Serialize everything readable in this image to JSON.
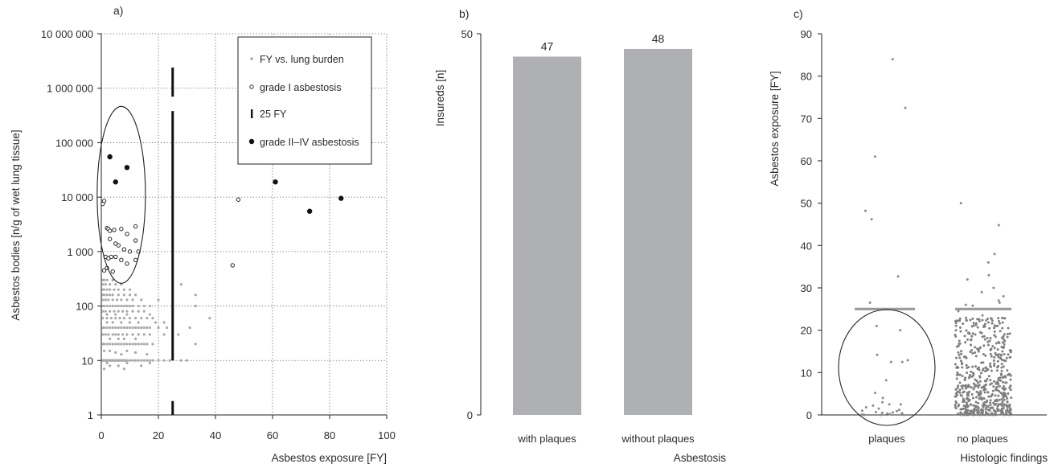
{
  "chart_data": [
    {
      "panel_label": "a)",
      "type": "scatter",
      "xlabel": "Asbestos exposure [FY]",
      "ylabel": "Asbestos bodies [n/g of wet lung tissue]",
      "xlim": [
        0,
        100
      ],
      "ylim": [
        1,
        10000000
      ],
      "y_scale": "log",
      "grid": true,
      "x_ticks": [
        0,
        20,
        40,
        60,
        80,
        100
      ],
      "x_tick_labels": [
        "0",
        "20",
        "40",
        "60",
        "80",
        "100"
      ],
      "y_ticks": [
        1,
        10,
        100,
        1000,
        10000,
        100000,
        1000000,
        10000000
      ],
      "y_tick_labels": [
        "1",
        "10",
        "100",
        "1 000",
        "10 000",
        "100 000",
        "1 000 000",
        "10 000 000"
      ],
      "legend_position": "top-right",
      "legend": [
        {
          "label": "FY vs. lung burden",
          "marker": "small-gray-dot"
        },
        {
          "label": "grade I asbestosis",
          "marker": "open-circle"
        },
        {
          "label": "25 FY",
          "marker": "vertical-bar"
        },
        {
          "label": "grade II–IV asbestosis",
          "marker": "filled-circle"
        }
      ],
      "series": [
        {
          "name": "FY vs. lung burden",
          "color": "#a9a9a9",
          "points": [
            [
              0.5,
              10
            ],
            [
              1,
              10
            ],
            [
              1.5,
              10
            ],
            [
              2,
              10
            ],
            [
              2.5,
              10
            ],
            [
              3,
              10
            ],
            [
              3.5,
              10
            ],
            [
              4,
              10
            ],
            [
              4.5,
              10
            ],
            [
              5,
              10
            ],
            [
              5.5,
              10
            ],
            [
              6,
              10
            ],
            [
              6.5,
              10
            ],
            [
              7,
              10
            ],
            [
              7.5,
              10
            ],
            [
              8,
              10
            ],
            [
              8.5,
              10
            ],
            [
              9,
              10
            ],
            [
              10,
              10
            ],
            [
              11,
              10
            ],
            [
              12,
              10
            ],
            [
              13,
              10
            ],
            [
              14,
              10
            ],
            [
              15,
              10
            ],
            [
              16,
              10
            ],
            [
              17,
              10
            ],
            [
              18,
              10
            ],
            [
              20,
              10
            ],
            [
              22,
              10
            ],
            [
              24,
              10
            ],
            [
              28,
              10
            ],
            [
              30,
              10
            ],
            [
              0.5,
              20
            ],
            [
              1,
              20
            ],
            [
              2,
              20
            ],
            [
              3,
              20
            ],
            [
              4,
              20
            ],
            [
              5,
              20
            ],
            [
              6,
              20
            ],
            [
              7,
              20
            ],
            [
              8,
              20
            ],
            [
              9,
              20
            ],
            [
              10,
              20
            ],
            [
              11,
              20
            ],
            [
              12,
              20
            ],
            [
              13,
              20
            ],
            [
              14,
              20
            ],
            [
              15,
              20
            ],
            [
              16,
              20
            ],
            [
              18,
              20
            ],
            [
              33,
              20
            ],
            [
              0.5,
              30
            ],
            [
              1.5,
              30
            ],
            [
              2.5,
              30
            ],
            [
              4,
              30
            ],
            [
              5,
              30
            ],
            [
              6,
              30
            ],
            [
              7.5,
              30
            ],
            [
              9,
              30
            ],
            [
              11,
              30
            ],
            [
              13,
              30
            ],
            [
              15,
              30
            ],
            [
              17,
              30
            ],
            [
              22,
              30
            ],
            [
              27,
              30
            ],
            [
              0.5,
              40
            ],
            [
              1,
              40
            ],
            [
              2,
              40
            ],
            [
              3,
              40
            ],
            [
              4,
              40
            ],
            [
              5,
              40
            ],
            [
              6,
              40
            ],
            [
              7,
              40
            ],
            [
              8,
              40
            ],
            [
              9,
              40
            ],
            [
              10,
              40
            ],
            [
              11,
              40
            ],
            [
              12,
              40
            ],
            [
              13,
              40
            ],
            [
              14,
              40
            ],
            [
              15,
              40
            ],
            [
              16,
              40
            ],
            [
              17,
              40
            ],
            [
              20,
              40
            ],
            [
              23,
              40
            ],
            [
              31,
              40
            ],
            [
              0.5,
              60
            ],
            [
              2,
              60
            ],
            [
              3.5,
              60
            ],
            [
              5,
              60
            ],
            [
              6.5,
              60
            ],
            [
              8,
              60
            ],
            [
              10,
              60
            ],
            [
              12,
              60
            ],
            [
              14,
              60
            ],
            [
              16,
              60
            ],
            [
              18,
              60
            ],
            [
              38,
              60
            ],
            [
              0.5,
              80
            ],
            [
              1.5,
              80
            ],
            [
              3,
              80
            ],
            [
              4.5,
              80
            ],
            [
              6,
              80
            ],
            [
              7.5,
              80
            ],
            [
              9,
              80
            ],
            [
              11,
              80
            ],
            [
              13,
              80
            ],
            [
              15,
              80
            ],
            [
              0.5,
              100
            ],
            [
              1,
              100
            ],
            [
              2,
              100
            ],
            [
              3,
              100
            ],
            [
              4,
              100
            ],
            [
              5,
              100
            ],
            [
              6,
              100
            ],
            [
              7,
              100
            ],
            [
              8,
              100
            ],
            [
              9,
              100
            ],
            [
              10,
              100
            ],
            [
              11,
              100
            ],
            [
              13,
              100
            ],
            [
              15,
              100
            ],
            [
              17,
              100
            ],
            [
              33,
              100
            ],
            [
              0.5,
              130
            ],
            [
              1.5,
              130
            ],
            [
              2.5,
              130
            ],
            [
              4,
              130
            ],
            [
              5.5,
              130
            ],
            [
              7,
              130
            ],
            [
              9,
              130
            ],
            [
              11,
              130
            ],
            [
              14,
              130
            ],
            [
              20,
              130
            ],
            [
              0.5,
              160
            ],
            [
              1,
              160
            ],
            [
              2,
              160
            ],
            [
              3,
              160
            ],
            [
              4,
              160
            ],
            [
              6,
              160
            ],
            [
              8,
              160
            ],
            [
              10,
              160
            ],
            [
              12,
              160
            ],
            [
              33,
              160
            ],
            [
              0.5,
              200
            ],
            [
              1,
              200
            ],
            [
              2,
              200
            ],
            [
              3,
              200
            ],
            [
              4.5,
              200
            ],
            [
              6,
              200
            ],
            [
              8,
              200
            ],
            [
              10,
              200
            ],
            [
              0.5,
              250
            ],
            [
              1.5,
              250
            ],
            [
              3,
              250
            ],
            [
              5,
              250
            ],
            [
              7,
              250
            ],
            [
              28,
              250
            ],
            [
              0.5,
              300
            ],
            [
              1,
              300
            ],
            [
              2,
              300
            ],
            [
              4,
              300
            ],
            [
              1,
              15
            ],
            [
              3,
              15
            ],
            [
              5,
              14
            ],
            [
              7,
              13
            ],
            [
              9,
              15
            ],
            [
              12,
              14
            ],
            [
              16,
              13
            ],
            [
              1,
              7
            ],
            [
              3,
              8
            ],
            [
              6,
              8
            ],
            [
              9,
              9
            ],
            [
              14,
              8
            ],
            [
              17,
              9
            ],
            [
              2,
              9
            ],
            [
              8,
              7
            ],
            [
              2,
              50
            ],
            [
              4,
              50
            ],
            [
              7,
              50
            ],
            [
              10,
              50
            ],
            [
              13,
              50
            ],
            [
              19,
              50
            ],
            [
              22,
              50
            ],
            [
              3,
              25
            ],
            [
              6,
              25
            ],
            [
              8,
              25
            ],
            [
              12,
              25
            ],
            [
              2,
              70
            ],
            [
              5,
              70
            ],
            [
              9,
              70
            ],
            [
              17,
              70
            ]
          ]
        },
        {
          "name": "grade I asbestosis",
          "color": "#2b2b2b",
          "points": [
            [
              0.5,
              7500
            ],
            [
              1,
              8500
            ],
            [
              2,
              2700
            ],
            [
              2.5,
              2600
            ],
            [
              3,
              2400
            ],
            [
              4.5,
              2500
            ],
            [
              7,
              2600
            ],
            [
              9,
              2100
            ],
            [
              12,
              2900
            ],
            [
              3,
              1700
            ],
            [
              5,
              1400
            ],
            [
              6,
              1300
            ],
            [
              12,
              1600
            ],
            [
              8,
              1100
            ],
            [
              10,
              1000
            ],
            [
              13,
              1000
            ],
            [
              1.5,
              800
            ],
            [
              2.5,
              750
            ],
            [
              3.5,
              800
            ],
            [
              5,
              800
            ],
            [
              7,
              700
            ],
            [
              9,
              600
            ],
            [
              12,
              700
            ],
            [
              1,
              450
            ],
            [
              2,
              500
            ],
            [
              4,
              430
            ],
            [
              46,
              560
            ],
            [
              48,
              9000
            ]
          ]
        },
        {
          "name": "grade II–IV asbestosis",
          "color": "#111111",
          "points": [
            [
              3,
              55000
            ],
            [
              5,
              19000
            ],
            [
              9,
              35000
            ],
            [
              61,
              19000
            ],
            [
              73,
              5500
            ],
            [
              84,
              9500
            ]
          ]
        },
        {
          "name": "25 FY",
          "color": "#111111",
          "x": 25,
          "segments": [
            [
              1,
              1.8
            ],
            [
              10,
              380000
            ],
            [
              700000,
              2400000
            ]
          ]
        }
      ],
      "annotations": [
        {
          "type": "ellipse",
          "center": [
            7,
            11000
          ],
          "note": "encircles asbestosis cases below 25 FY"
        }
      ]
    },
    {
      "panel_label": "b)",
      "type": "bar",
      "categories": [
        "with plaques",
        "without plaques"
      ],
      "values": [
        47,
        48
      ],
      "data_labels": [
        "47",
        "48"
      ],
      "ylabel": "Insureds [n]",
      "xlabel": "Asbestosis",
      "ylim": [
        0,
        50
      ],
      "y_ticks": [
        0,
        50
      ],
      "y_tick_labels": [
        "0",
        "50"
      ],
      "bar_color": "#aeb0b3"
    },
    {
      "panel_label": "c)",
      "type": "scatter",
      "categories": [
        "plaques",
        "no plaques"
      ],
      "ylabel": "Asbestos exposure [FY]",
      "xlabel": "Histologic findings",
      "ylim": [
        0,
        90
      ],
      "y_ticks": [
        0,
        10,
        20,
        30,
        40,
        50,
        60,
        70,
        80,
        90
      ],
      "y_tick_labels": [
        "0",
        "10",
        "20",
        "30",
        "40",
        "50",
        "60",
        "70",
        "80",
        "90"
      ],
      "reference_line": {
        "value": 25,
        "color": "#9a9a9a"
      },
      "series": [
        {
          "name": "plaques",
          "color": "#8a8a8a",
          "values": [
            84,
            72.5,
            61,
            48.2,
            46.2,
            32.7,
            26.5,
            21,
            20,
            14.2,
            12.5,
            12.5,
            12.9,
            8.2,
            5.2,
            4,
            3,
            2.5,
            2.2,
            2.5,
            1.8,
            1.2,
            1,
            0.7,
            0.5,
            0.3,
            0.2,
            0.6,
            0.9,
            1.5,
            0.4,
            0.1,
            0,
            0,
            0,
            0
          ]
        },
        {
          "name": "no plaques",
          "color": "#8a8a8a",
          "summary": "dense cloud of ~500 points between 0 and about 23 FY, densest near 0",
          "sparse_values": [
            50,
            44.8,
            38,
            36,
            33,
            32,
            30,
            29,
            28,
            27,
            26.5,
            26,
            25.8,
            24.5,
            23.5,
            22.8,
            22.3
          ]
        }
      ],
      "annotations": [
        {
          "type": "ellipse",
          "around": "plaques below 25 FY"
        }
      ]
    }
  ]
}
